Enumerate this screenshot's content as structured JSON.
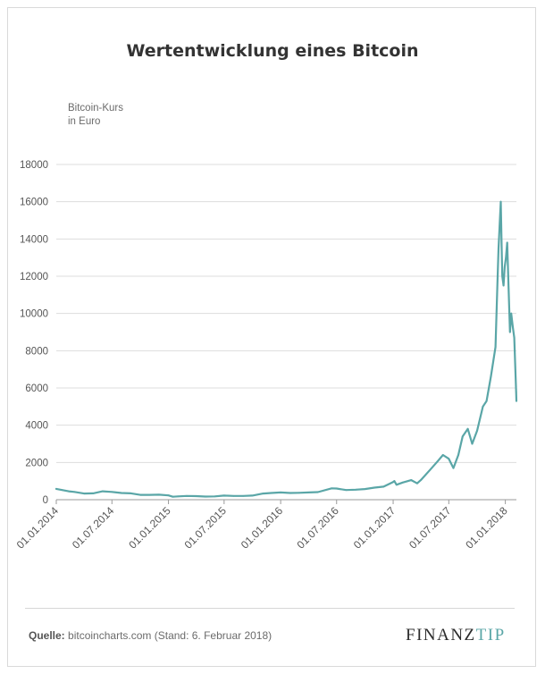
{
  "title": "Wertentwicklung eines Bitcoin",
  "y_axis_label": [
    "Bitcoin-Kurs",
    "in Euro"
  ],
  "source_label": "Quelle:",
  "source_text": "bitcoincharts.com (Stand: 6. Februar 2018)",
  "logo": {
    "part1": "FINANZ",
    "part2": "TIP"
  },
  "colors": {
    "line": "#5aa6a7",
    "grid": "#dddddd",
    "logo_accent": "#5aa6a7"
  },
  "chart_data": {
    "type": "line",
    "title": "Wertentwicklung eines Bitcoin",
    "ylabel": "Bitcoin-Kurs in Euro",
    "ylim": [
      0,
      18000
    ],
    "yticks": [
      0,
      2000,
      4000,
      6000,
      8000,
      10000,
      12000,
      14000,
      16000,
      18000
    ],
    "xlim": [
      "2014-01-01",
      "2018-02-06"
    ],
    "xticks": [
      "01.01.2014",
      "01.07.2014",
      "01.01.2015",
      "01.07.2015",
      "01.01.2016",
      "01.07.2016",
      "01.01.2017",
      "01.07.2017",
      "01.01.2018"
    ],
    "grid": "horizontal",
    "series": [
      {
        "x": [
          "2014-01-01",
          "2014-01-20",
          "2014-02-10",
          "2014-03-01",
          "2014-04-01",
          "2014-05-01",
          "2014-06-01",
          "2014-07-01",
          "2014-08-01",
          "2014-09-01",
          "2014-10-01",
          "2014-11-01",
          "2014-12-01",
          "2015-01-01",
          "2015-01-15",
          "2015-02-01",
          "2015-03-01",
          "2015-04-01",
          "2015-05-01",
          "2015-06-01",
          "2015-07-01",
          "2015-08-01",
          "2015-09-01",
          "2015-10-01",
          "2015-11-05",
          "2015-12-01",
          "2016-01-01",
          "2016-02-01",
          "2016-03-01",
          "2016-04-01",
          "2016-05-01",
          "2016-06-15",
          "2016-07-01",
          "2016-08-01",
          "2016-09-01",
          "2016-10-01",
          "2016-11-01",
          "2016-12-01",
          "2017-01-01",
          "2017-01-05",
          "2017-01-12",
          "2017-02-01",
          "2017-03-01",
          "2017-03-20",
          "2017-04-01",
          "2017-05-01",
          "2017-05-25",
          "2017-06-12",
          "2017-07-01",
          "2017-07-16",
          "2017-08-01",
          "2017-08-15",
          "2017-09-01",
          "2017-09-15",
          "2017-10-01",
          "2017-10-20",
          "2017-11-01",
          "2017-11-15",
          "2017-11-30",
          "2017-12-07",
          "2017-12-10",
          "2017-12-17",
          "2017-12-20",
          "2017-12-22",
          "2017-12-26",
          "2017-12-30",
          "2018-01-03",
          "2018-01-07",
          "2018-01-10",
          "2018-01-16",
          "2018-01-20",
          "2018-01-25",
          "2018-01-30",
          "2018-02-02",
          "2018-02-05",
          "2018-02-06"
        ],
        "y": [
          580,
          520,
          450,
          420,
          330,
          340,
          450,
          420,
          360,
          340,
          260,
          260,
          270,
          230,
          160,
          180,
          200,
          190,
          170,
          180,
          220,
          200,
          200,
          220,
          330,
          360,
          390,
          360,
          370,
          390,
          410,
          610,
          600,
          520,
          540,
          570,
          650,
          700,
          950,
          1000,
          800,
          920,
          1050,
          880,
          1050,
          1600,
          2050,
          2400,
          2200,
          1700,
          2400,
          3400,
          3800,
          3000,
          3700,
          5000,
          5300,
          6600,
          8200,
          12000,
          13500,
          16000,
          13500,
          12000,
          11500,
          12500,
          13000,
          13800,
          12200,
          9000,
          10000,
          9300,
          8700,
          7300,
          5800,
          5300
        ]
      }
    ]
  }
}
